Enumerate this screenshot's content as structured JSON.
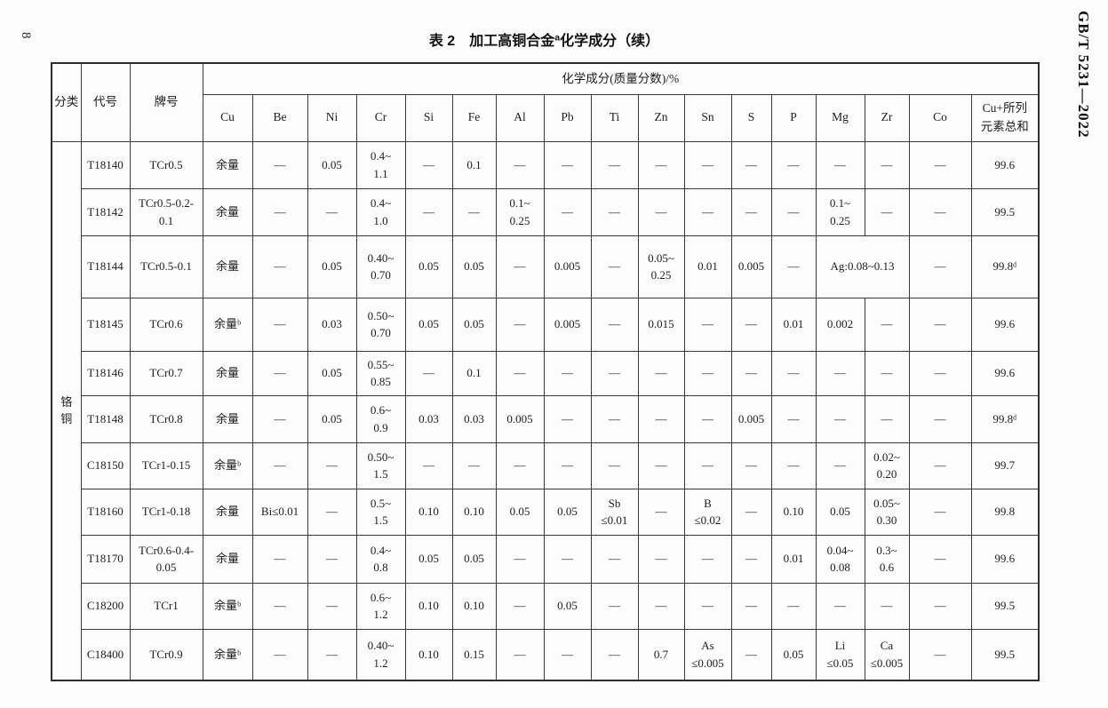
{
  "page": {
    "page_number": "8",
    "standard_code": "GB/T 5231—2022",
    "title": "表 2　加工高铜合金ª化学成分（续）"
  },
  "table": {
    "fixed_headers": [
      "分类",
      "代号",
      "牌号"
    ],
    "group_header": "化学成分(质量分数)/%",
    "element_headers": [
      "Cu",
      "Be",
      "Ni",
      "Cr",
      "Si",
      "Fe",
      "Al",
      "Pb",
      "Ti",
      "Zn",
      "Sn",
      "S",
      "P",
      "Mg",
      "Zr",
      "Co",
      "Cu+所列\n元素总和"
    ],
    "category": "铬\n铜",
    "rows": [
      {
        "code": "T18140",
        "name": "TCr0.5",
        "values": [
          "余量",
          "—",
          "0.05",
          "0.4~\n1.1",
          "—",
          "0.1",
          "—",
          "—",
          "—",
          "—",
          "—",
          "—",
          "—",
          "—",
          "—",
          "—",
          "99.6"
        ]
      },
      {
        "code": "T18142",
        "name": "TCr0.5-0.2-\n0.1",
        "values": [
          "余量",
          "—",
          "—",
          "0.4~\n1.0",
          "—",
          "—",
          "0.1~\n0.25",
          "—",
          "—",
          "—",
          "—",
          "—",
          "—",
          "0.1~\n0.25",
          "—",
          "—",
          "99.5"
        ]
      },
      {
        "code": "T18144",
        "name": "TCr0.5-0.1",
        "values": [
          "余量",
          "—",
          "0.05",
          "0.40~\n0.70",
          "0.05",
          "0.05",
          "—",
          "0.005",
          "—",
          "0.05~\n0.25",
          "0.01",
          "0.005",
          "—",
          {
            "text": "Ag:0.08~0.13",
            "colspan": 2
          },
          "—",
          "99.8ᵈ"
        ]
      },
      {
        "code": "T18145",
        "name": "TCr0.6",
        "values": [
          "余量ᵇ",
          "—",
          "0.03",
          "0.50~\n0.70",
          "0.05",
          "0.05",
          "—",
          "0.005",
          "—",
          "0.015",
          "—",
          "—",
          "0.01",
          "0.002",
          "—",
          "—",
          "99.6"
        ]
      },
      {
        "code": "T18146",
        "name": "TCr0.7",
        "values": [
          "余量",
          "—",
          "0.05",
          "0.55~\n0.85",
          "—",
          "0.1",
          "—",
          "—",
          "—",
          "—",
          "—",
          "—",
          "—",
          "—",
          "—",
          "—",
          "99.6"
        ]
      },
      {
        "code": "T18148",
        "name": "TCr0.8",
        "values": [
          "余量",
          "—",
          "0.05",
          "0.6~\n0.9",
          "0.03",
          "0.03",
          "0.005",
          "—",
          "—",
          "—",
          "—",
          "0.005",
          "—",
          "—",
          "—",
          "—",
          "99.8ᵈ"
        ]
      },
      {
        "code": "C18150",
        "name": "TCr1-0.15",
        "values": [
          "余量ᵇ",
          "—",
          "—",
          "0.50~\n1.5",
          "—",
          "—",
          "—",
          "—",
          "—",
          "—",
          "—",
          "—",
          "—",
          "—",
          "0.02~\n0.20",
          "—",
          "99.7"
        ]
      },
      {
        "code": "T18160",
        "name": "TCr1-0.18",
        "values": [
          "余量",
          "Bi≤0.01",
          "—",
          "0.5~\n1.5",
          "0.10",
          "0.10",
          "0.05",
          "0.05",
          "Sb\n≤0.01",
          "—",
          "B\n≤0.02",
          "—",
          "0.10",
          "0.05",
          "0.05~\n0.30",
          "—",
          "99.8"
        ]
      },
      {
        "code": "T18170",
        "name": "TCr0.6-0.4-\n0.05",
        "values": [
          "余量",
          "—",
          "—",
          "0.4~\n0.8",
          "0.05",
          "0.05",
          "—",
          "—",
          "—",
          "—",
          "—",
          "—",
          "0.01",
          "0.04~\n0.08",
          "0.3~\n0.6",
          "—",
          "99.6"
        ]
      },
      {
        "code": "C18200",
        "name": "TCr1",
        "values": [
          "余量ᵇ",
          "—",
          "—",
          "0.6~\n1.2",
          "0.10",
          "0.10",
          "—",
          "0.05",
          "—",
          "—",
          "—",
          "—",
          "—",
          "—",
          "—",
          "—",
          "99.5"
        ]
      },
      {
        "code": "C18400",
        "name": "TCr0.9",
        "values": [
          "余量ᵇ",
          "—",
          "—",
          "0.40~\n1.2",
          "0.10",
          "0.15",
          "—",
          "—",
          "—",
          "0.7",
          "As\n≤0.005",
          "—",
          "0.05",
          "Li\n≤0.05",
          "Ca\n≤0.005",
          "—",
          "99.5"
        ]
      }
    ]
  }
}
